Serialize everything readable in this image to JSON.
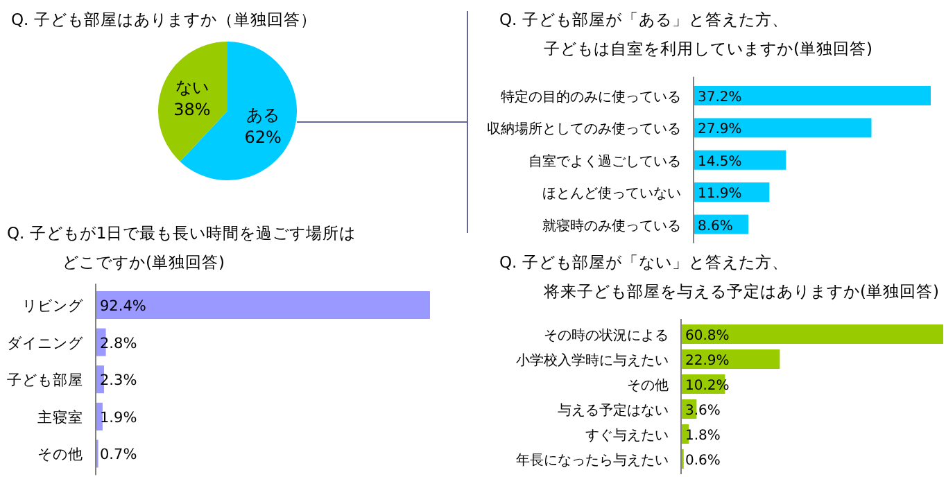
{
  "chart_data": [
    {
      "type": "pie",
      "title": "Q. 子ども部屋はありますか（単独回答）",
      "categories": [
        "ある",
        "ない"
      ],
      "values": [
        62,
        38
      ],
      "colors": [
        "#00ccff",
        "#99cc00"
      ],
      "value_labels": [
        "62%",
        "38%"
      ]
    },
    {
      "type": "bar",
      "orientation": "horizontal",
      "title": "Q. 子ども部屋が「ある」と答えた方、子どもは自室を利用していますか(単独回答)",
      "categories": [
        "特定の目的のみに使っている",
        "収納場所としてのみ使っている",
        "自室でよく過ごしている",
        "ほとんど使っていない",
        "就寝時のみ使っている"
      ],
      "values": [
        37.2,
        27.9,
        14.5,
        11.9,
        8.6
      ],
      "color": "#00ccff",
      "value_labels": [
        "37.2%",
        "27.9%",
        "14.5%",
        "11.9%",
        "8.6%"
      ]
    },
    {
      "type": "bar",
      "orientation": "horizontal",
      "title": "Q. 子どもが1日で最も長い時間を過ごす場所はどこですか(単独回答)",
      "categories": [
        "リビング",
        "ダイニング",
        "子ども部屋",
        "主寝室",
        "その他"
      ],
      "values": [
        92.4,
        2.8,
        2.3,
        1.9,
        0.7
      ],
      "color": "#9999ff",
      "value_labels": [
        "92.4%",
        "2.8%",
        "2.3%",
        "1.9%",
        "0.7%"
      ]
    },
    {
      "type": "bar",
      "orientation": "horizontal",
      "title": "Q. 子ども部屋が「ない」と答えた方、将来子ども部屋を与える予定はありますか(単独回答)",
      "categories": [
        "その時の状況による",
        "小学校入学時に与えたい",
        "その他",
        "与える予定はない",
        "すぐ与えたい",
        "年長になったら与えたい"
      ],
      "values": [
        60.8,
        22.9,
        10.2,
        3.6,
        1.8,
        0.6
      ],
      "color": "#99cc00",
      "value_labels": [
        "60.8%",
        "22.9%",
        "10.2%",
        "3.6%",
        "1.8%",
        "0.6%"
      ]
    }
  ]
}
